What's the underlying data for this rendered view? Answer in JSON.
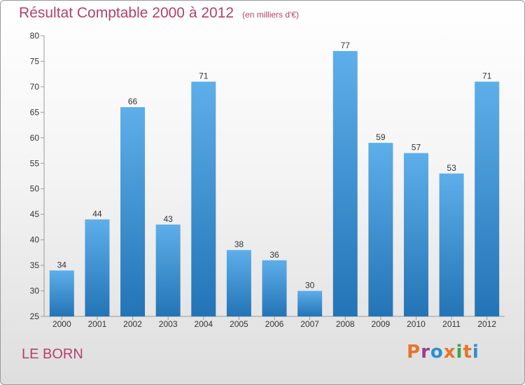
{
  "header": {
    "title": "Résultat Comptable 2000 à 2012",
    "subtitle": "(en milliers d'€)"
  },
  "footer": {
    "town": "LE BORN",
    "logo_text": "Proxiti",
    "logo_colors": [
      "#e8742a",
      "#9b3d94",
      "#2a8fd1",
      "#e8742a",
      "#3aa64a",
      "#e8742a",
      "#2a8fd1"
    ]
  },
  "colors": {
    "bar_top": "#5eaeea",
    "bar_bottom": "#2374b6",
    "title": "#b0426a"
  },
  "chart_data": {
    "type": "bar",
    "categories": [
      "2000",
      "2001",
      "2002",
      "2003",
      "2004",
      "2005",
      "2006",
      "2007",
      "2008",
      "2009",
      "2010",
      "2011",
      "2012"
    ],
    "values": [
      34,
      44,
      66,
      43,
      71,
      38,
      36,
      30,
      77,
      59,
      57,
      53,
      71
    ],
    "title": "Résultat Comptable 2000 à 2012",
    "subtitle": "(en milliers d'€)",
    "xlabel": "",
    "ylabel": "",
    "ylim": [
      25,
      80
    ],
    "yticks": [
      25,
      30,
      35,
      40,
      45,
      50,
      55,
      60,
      65,
      70,
      75,
      80
    ],
    "grid": false,
    "legend": "none"
  }
}
